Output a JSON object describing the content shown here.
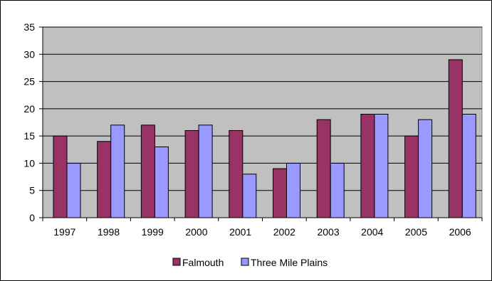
{
  "chart_data": {
    "type": "bar",
    "categories": [
      "1997",
      "1998",
      "1999",
      "2000",
      "2001",
      "2002",
      "2003",
      "2004",
      "2005",
      "2006"
    ],
    "series": [
      {
        "name": "Falmouth",
        "color": "#993366",
        "values": [
          15,
          14,
          17,
          16,
          16,
          9,
          18,
          19,
          15,
          29
        ]
      },
      {
        "name": "Three Mile Plains",
        "color": "#9999FF",
        "values": [
          10,
          17,
          13,
          17,
          8,
          10,
          10,
          19,
          18,
          19
        ]
      }
    ],
    "yticks": [
      "0",
      "5",
      "10",
      "15",
      "20",
      "25",
      "30",
      "35"
    ],
    "ylim": [
      0,
      35
    ],
    "grid": true,
    "plot_background": "#C0C0C0",
    "legend_position": "bottom",
    "title": "",
    "xlabel": "",
    "ylabel": ""
  }
}
